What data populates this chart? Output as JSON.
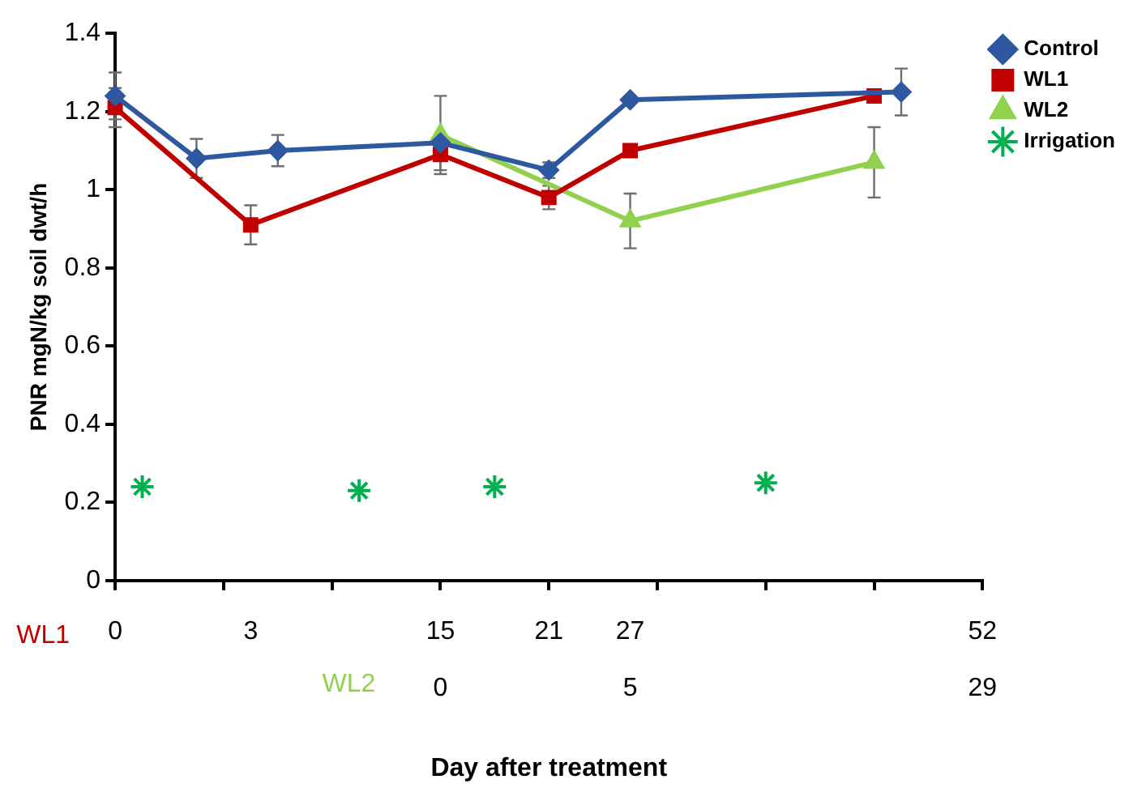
{
  "chart_data": {
    "type": "line",
    "ylabel": "PNR mgN/kg soil dwt/h",
    "xlabel": "Day after treatment",
    "categories": [
      "0",
      null,
      null,
      null,
      null,
      "3",
      null,
      null,
      null,
      null,
      null,
      null,
      "15\n0",
      null,
      null,
      null,
      "21",
      null,
      null,
      "27\n5",
      null,
      null,
      null,
      null,
      null,
      null,
      null,
      null,
      null,
      null,
      null,
      null,
      "52\n29"
    ],
    "ylim": [
      0,
      1.4
    ],
    "yticks": [
      0,
      0.2,
      0.4,
      0.6,
      0.8,
      1,
      1.2,
      1.4
    ],
    "grid": false,
    "legend": "top right",
    "annotations": [
      "WL1",
      "WL2"
    ],
    "series": [
      {
        "name": "Control",
        "color": "#2e58a0",
        "marker": "diamond",
        "values": [
          1.24,
          null,
          null,
          1.08,
          null,
          null,
          1.1,
          null,
          null,
          null,
          null,
          null,
          1.12,
          null,
          null,
          null,
          1.05,
          null,
          null,
          1.23,
          null,
          null,
          null,
          null,
          null,
          null,
          null,
          null,
          null,
          1.25,
          null,
          null,
          null
        ],
        "errors": [
          0.06,
          null,
          null,
          0.05,
          null,
          null,
          0.04,
          null,
          null,
          null,
          null,
          null,
          null,
          null,
          null,
          null,
          0.02,
          null,
          null,
          null,
          null,
          null,
          null,
          null,
          null,
          null,
          null,
          null,
          null,
          0.06,
          null,
          null,
          null
        ]
      },
      {
        "name": "WL1",
        "color": "#c00000",
        "marker": "square",
        "values": [
          1.21,
          null,
          null,
          null,
          null,
          0.91,
          null,
          null,
          null,
          null,
          null,
          null,
          1.09,
          null,
          null,
          null,
          0.98,
          null,
          null,
          1.1,
          null,
          null,
          null,
          null,
          null,
          null,
          null,
          null,
          1.24,
          null,
          null,
          null,
          null
        ],
        "errors": [
          0.05,
          null,
          null,
          null,
          null,
          0.05,
          null,
          null,
          null,
          null,
          null,
          null,
          0.04,
          null,
          null,
          null,
          0.03,
          null,
          null,
          null,
          null,
          null,
          null,
          null,
          null,
          null,
          null,
          null,
          null,
          null,
          null,
          null,
          null
        ]
      },
      {
        "name": "WL2",
        "color": "#92d050",
        "marker": "triangle",
        "values": [
          null,
          null,
          null,
          null,
          null,
          null,
          null,
          null,
          null,
          null,
          null,
          null,
          1.14,
          null,
          null,
          null,
          null,
          null,
          null,
          0.92,
          null,
          null,
          null,
          null,
          null,
          null,
          null,
          null,
          1.07,
          null,
          null,
          null,
          null
        ],
        "errors": [
          null,
          null,
          null,
          null,
          null,
          null,
          null,
          null,
          null,
          null,
          null,
          null,
          0.1,
          null,
          null,
          null,
          null,
          null,
          null,
          0.07,
          null,
          null,
          null,
          null,
          null,
          null,
          null,
          null,
          0.09,
          null,
          null,
          null,
          null
        ]
      },
      {
        "name": "Irrigation",
        "type": "scatter",
        "color": "#00b050",
        "marker": "cross",
        "values": [
          null,
          0.24,
          null,
          null,
          null,
          null,
          null,
          null,
          null,
          0.23,
          null,
          null,
          null,
          null,
          0.24,
          null,
          null,
          null,
          null,
          null,
          null,
          null,
          null,
          null,
          0.25,
          null,
          null,
          null,
          null,
          null,
          null,
          null,
          null
        ]
      }
    ]
  }
}
